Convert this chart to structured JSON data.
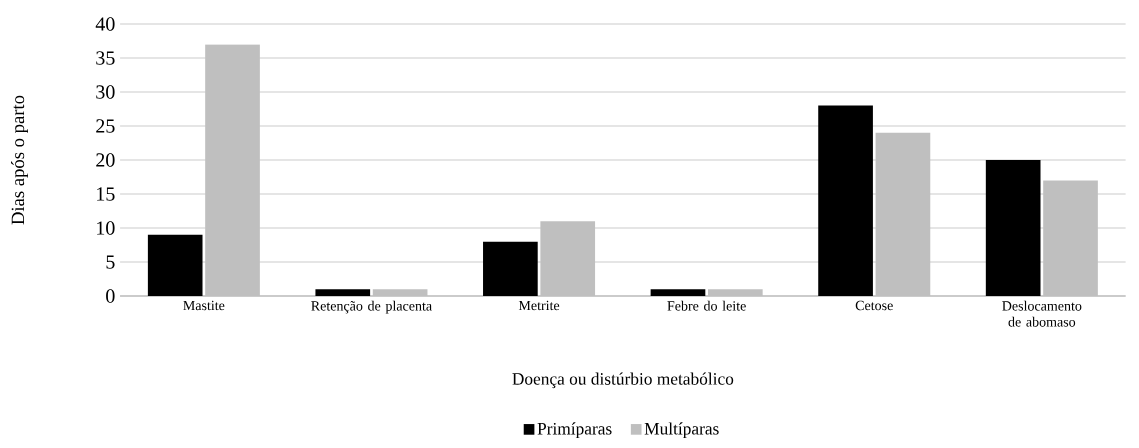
{
  "chart_data": {
    "type": "bar",
    "xlabel": "Doença ou distúrbio metabólico",
    "ylabel": "Dias após o parto",
    "categories": [
      "Mastite",
      "Retenção de placenta",
      "Metrite",
      "Febre do leite",
      "Cetose",
      "Deslocamento de abomaso"
    ],
    "series": [
      {
        "name": "Primíparas",
        "color": "#000000",
        "values": [
          9,
          1,
          8,
          1,
          28,
          20
        ]
      },
      {
        "name": "Multíparas",
        "color": "#bfbfbf",
        "values": [
          37,
          1,
          11,
          1,
          24,
          17
        ]
      }
    ],
    "ylim": [
      0,
      40
    ],
    "yticks": [
      0,
      5,
      10,
      15,
      20,
      25,
      30,
      35,
      40
    ],
    "grid": "y",
    "legend": "bottom"
  }
}
